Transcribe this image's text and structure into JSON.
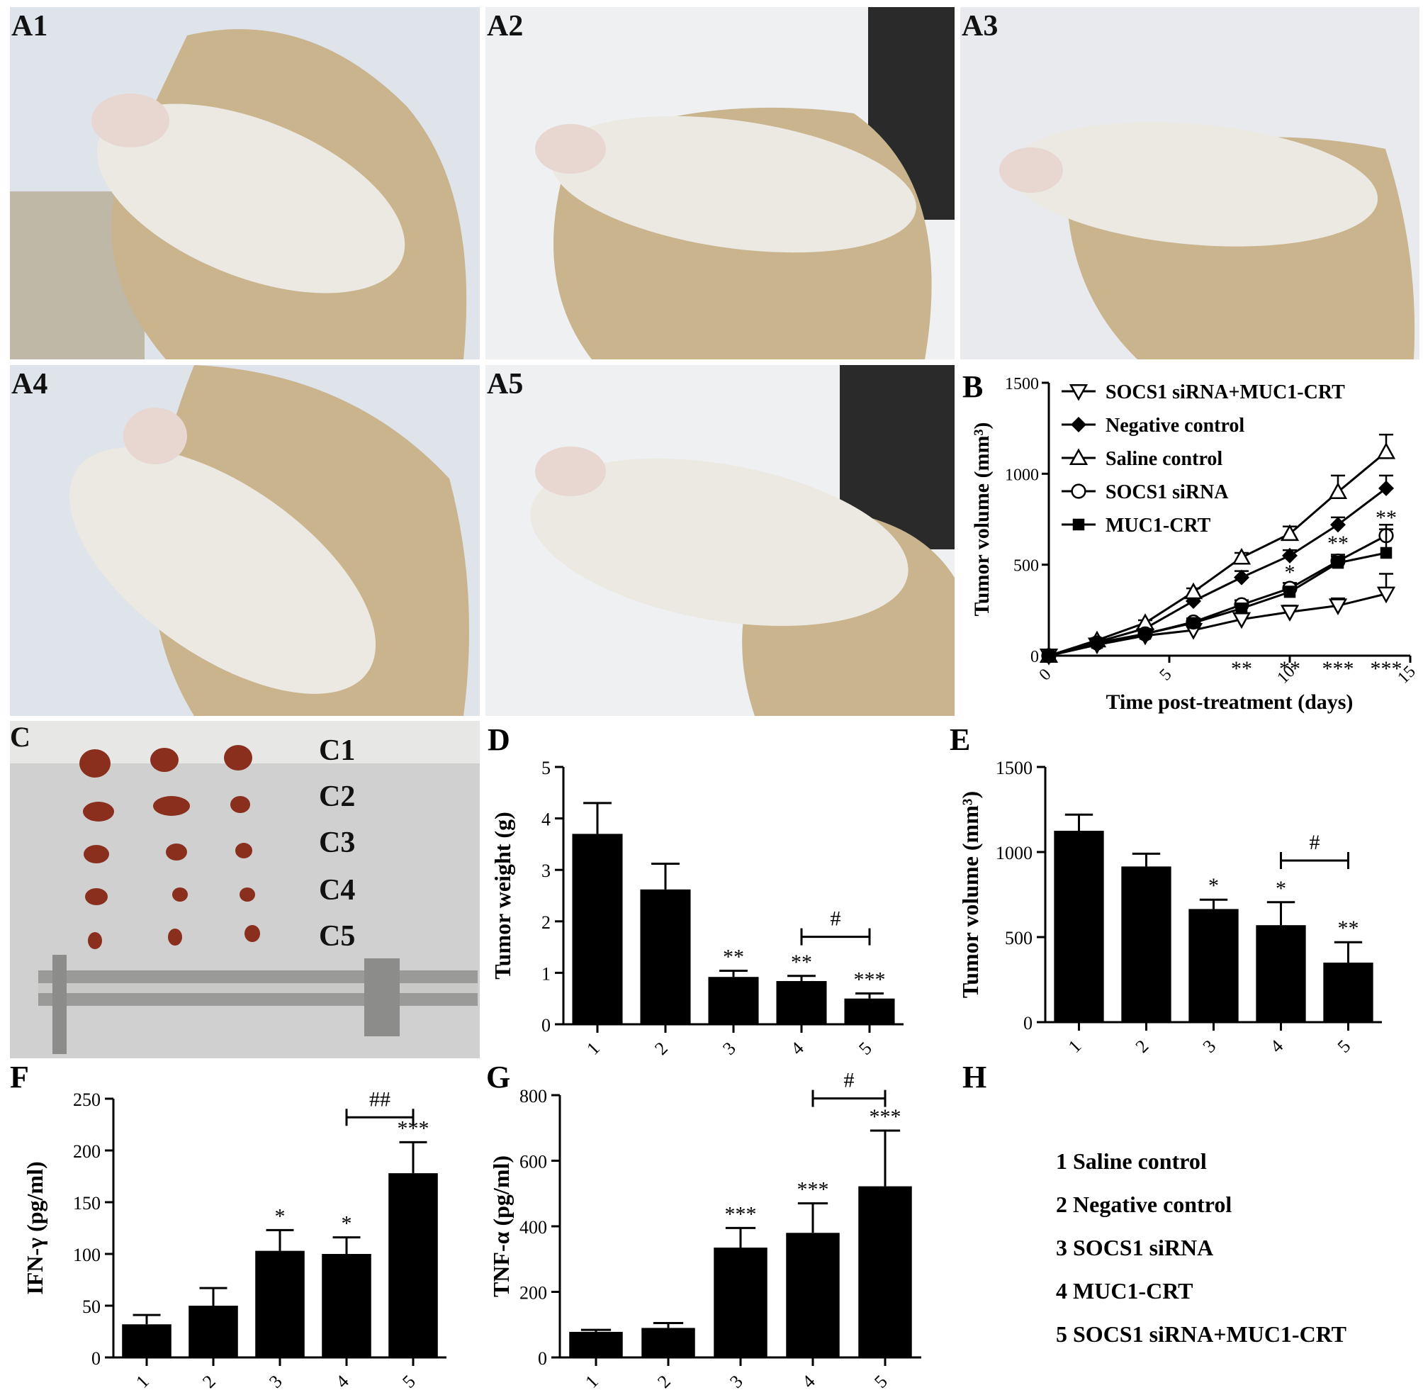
{
  "figure": {
    "photos": [
      {
        "label": "A1"
      },
      {
        "label": "A2"
      },
      {
        "label": "A3"
      },
      {
        "label": "A4"
      },
      {
        "label": "A5"
      },
      {
        "label": "C"
      }
    ],
    "caliper_rows": [
      "C1",
      "C2",
      "C3",
      "C4",
      "C5"
    ],
    "panel_letters": {
      "B": "B",
      "D": "D",
      "E": "E",
      "F": "F",
      "G": "G",
      "H": "H"
    },
    "group_legend": [
      "1 Saline control",
      "2 Negative control",
      "3 SOCS1 siRNA",
      "4 MUC1-CRT",
      "5 SOCS1 siRNA+MUC1-CRT"
    ],
    "colors": {
      "ink": "#000000",
      "photo_bg": "#d9d3c4",
      "glove": "#c9b48e",
      "mouse": "#ece9e2"
    }
  },
  "chart_data": [
    {
      "id": "B",
      "type": "line",
      "ylabel": "Tumor volume (mm³)",
      "xlabel": "Time post-treatment (days)",
      "xlim": [
        0,
        15
      ],
      "ylim": [
        0,
        1500
      ],
      "xticks": [
        "0",
        "5",
        "10",
        "15"
      ],
      "yticks": [
        "0",
        "500",
        "1000",
        "1500"
      ],
      "legend_position": "top-left",
      "x": [
        0,
        2,
        4,
        6,
        8,
        10,
        12,
        14
      ],
      "series": [
        {
          "name": "SOCS1 siRNA+MUC1-CRT",
          "marker": "triangle-down-open",
          "values": [
            0,
            60,
            110,
            140,
            200,
            240,
            275,
            340
          ],
          "err": [
            0,
            10,
            15,
            20,
            30,
            35,
            40,
            110
          ]
        },
        {
          "name": "Negative control",
          "marker": "diamond-filled",
          "values": [
            0,
            75,
            150,
            300,
            430,
            550,
            720,
            920
          ],
          "err": [
            0,
            10,
            15,
            20,
            35,
            30,
            40,
            70
          ]
        },
        {
          "name": "Saline control",
          "marker": "triangle-up-open",
          "values": [
            0,
            85,
            180,
            350,
            540,
            670,
            900,
            1120
          ],
          "err": [
            0,
            10,
            15,
            20,
            25,
            40,
            90,
            95
          ]
        },
        {
          "name": "SOCS1 siRNA",
          "marker": "circle-open",
          "values": [
            0,
            70,
            120,
            185,
            280,
            370,
            520,
            660
          ],
          "err": [
            0,
            10,
            15,
            20,
            25,
            30,
            35,
            60
          ]
        },
        {
          "name": "MUC1-CRT",
          "marker": "square-filled",
          "values": [
            0,
            70,
            120,
            180,
            260,
            350,
            510,
            565
          ],
          "err": [
            0,
            10,
            15,
            20,
            25,
            30,
            35,
            130
          ]
        }
      ],
      "annotations": [
        {
          "x": 8,
          "y": -110,
          "text": "**"
        },
        {
          "x": 10,
          "y": -110,
          "text": "**"
        },
        {
          "x": 12,
          "y": -110,
          "text": "***"
        },
        {
          "x": 14,
          "y": -110,
          "text": "***"
        },
        {
          "x": 10,
          "y": 420,
          "text": "*"
        },
        {
          "x": 12,
          "y": 580,
          "text": "**"
        },
        {
          "x": 14,
          "y": 720,
          "text": "**"
        }
      ]
    },
    {
      "id": "D",
      "type": "bar",
      "ylabel": "Tumor weight (g)",
      "categories": [
        "1",
        "2",
        "3",
        "4",
        "5"
      ],
      "values": [
        3.7,
        2.62,
        0.92,
        0.84,
        0.5
      ],
      "err": [
        0.6,
        0.5,
        0.12,
        0.1,
        0.1
      ],
      "sig": [
        "",
        "",
        "**",
        "**",
        "***"
      ],
      "ylim": [
        0,
        5
      ],
      "yticks": [
        "0",
        "1",
        "2",
        "3",
        "4",
        "5"
      ],
      "bracket": {
        "from": 4,
        "to": 5,
        "y": 1.7,
        "text": "#"
      }
    },
    {
      "id": "E",
      "type": "bar",
      "ylabel": "Tumor volume (mm³)",
      "categories": [
        "1",
        "2",
        "3",
        "4",
        "5"
      ],
      "values": [
        1125,
        915,
        665,
        570,
        350
      ],
      "err": [
        95,
        75,
        55,
        135,
        120
      ],
      "sig": [
        "",
        "",
        "*",
        "*",
        "**"
      ],
      "ylim": [
        0,
        1500
      ],
      "yticks": [
        "0",
        "500",
        "1000",
        "1500"
      ],
      "bracket": {
        "from": 4,
        "to": 5,
        "y": 950,
        "text": "#"
      }
    },
    {
      "id": "F",
      "type": "bar",
      "ylabel": "IFN-γ (pg/ml)",
      "categories": [
        "1",
        "2",
        "3",
        "4",
        "5"
      ],
      "values": [
        32,
        50,
        103,
        100,
        178
      ],
      "err": [
        9,
        17,
        20,
        16,
        30
      ],
      "sig": [
        "",
        "",
        "*",
        "*",
        "***"
      ],
      "ylim": [
        0,
        250
      ],
      "yticks": [
        "0",
        "50",
        "100",
        "150",
        "200",
        "250"
      ],
      "bracket": {
        "from": 4,
        "to": 5,
        "y": 232,
        "text": "##"
      }
    },
    {
      "id": "G",
      "type": "bar",
      "ylabel": "TNF-α (pg/ml)",
      "categories": [
        "1",
        "2",
        "3",
        "4",
        "5"
      ],
      "values": [
        78,
        90,
        335,
        380,
        522
      ],
      "err": [
        6,
        15,
        60,
        90,
        170
      ],
      "sig": [
        "",
        "",
        "***",
        "***",
        "***"
      ],
      "ylim": [
        0,
        800
      ],
      "yticks": [
        "0",
        "200",
        "400",
        "600",
        "800"
      ],
      "bracket": {
        "from": 4,
        "to": 5,
        "y": 790,
        "text": "#"
      }
    }
  ]
}
